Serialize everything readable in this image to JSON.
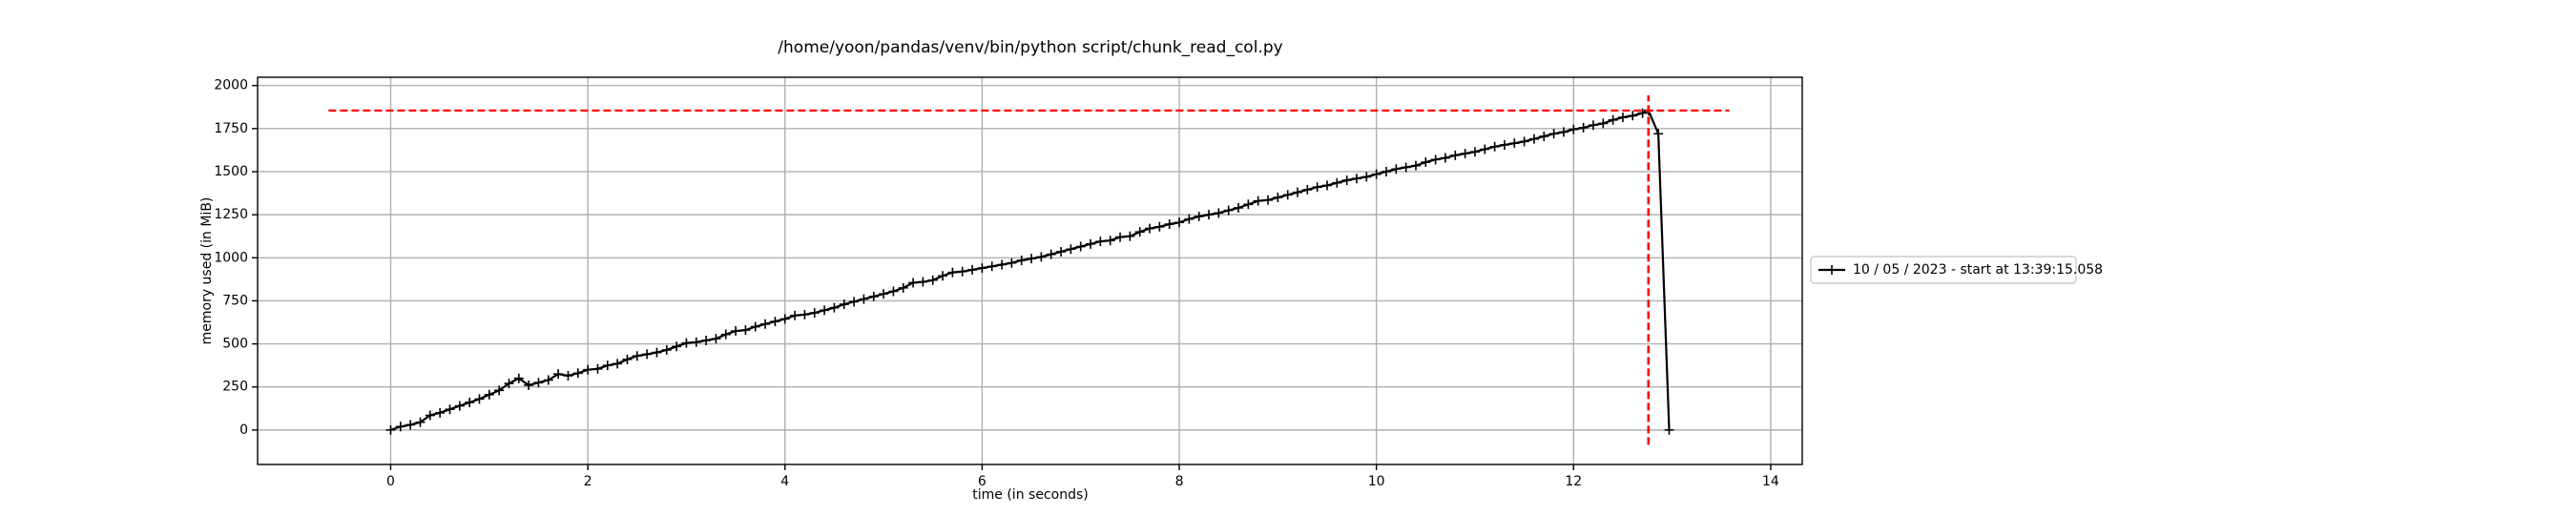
{
  "chart_data": {
    "type": "line",
    "title": "/home/yoon/pandas/venv/bin/python script/chunk_read_col.py",
    "x_label": "time (in seconds)",
    "y_label": "memory used (in MiB)",
    "x": [
      0,
      0.1,
      0.2,
      0.3,
      0.4,
      0.5,
      0.6,
      0.7,
      0.8,
      0.9,
      1.0,
      1.1,
      1.2,
      1.3,
      1.4,
      1.5,
      1.6,
      1.7,
      1.8,
      1.9,
      2.0,
      2.1,
      2.2,
      2.3,
      2.4,
      2.5,
      2.6,
      2.7,
      2.8,
      2.9,
      3.0,
      3.1,
      3.2,
      3.3,
      3.4,
      3.5,
      3.6,
      3.7,
      3.8,
      3.9,
      4.0,
      4.1,
      4.2,
      4.3,
      4.4,
      4.5,
      4.6,
      4.7,
      4.8,
      4.9,
      5.0,
      5.1,
      5.2,
      5.3,
      5.4,
      5.5,
      5.6,
      5.7,
      5.8,
      5.9,
      6.0,
      6.1,
      6.2,
      6.3,
      6.4,
      6.5,
      6.6,
      6.7,
      6.8,
      6.9,
      7.0,
      7.1,
      7.2,
      7.3,
      7.4,
      7.5,
      7.6,
      7.7,
      7.8,
      7.9,
      8.0,
      8.1,
      8.2,
      8.3,
      8.4,
      8.5,
      8.6,
      8.7,
      8.8,
      8.9,
      9.0,
      9.1,
      9.2,
      9.3,
      9.4,
      9.5,
      9.6,
      9.7,
      9.8,
      9.9,
      10.0,
      10.1,
      10.2,
      10.3,
      10.4,
      10.5,
      10.6,
      10.7,
      10.8,
      10.9,
      11.0,
      11.1,
      11.2,
      11.3,
      11.4,
      11.5,
      11.6,
      11.7,
      11.8,
      11.9,
      12.0,
      12.1,
      12.2,
      12.3,
      12.4,
      12.5,
      12.6,
      12.7,
      12.76,
      12.86,
      12.97
    ],
    "series": [
      {
        "name": "10 / 05 / 2023 - start at 13:39:15.058",
        "color": "#000000",
        "values": [
          0,
          20,
          30,
          45,
          85,
          100,
          120,
          140,
          160,
          180,
          205,
          230,
          270,
          300,
          260,
          275,
          290,
          325,
          315,
          330,
          350,
          355,
          375,
          385,
          410,
          430,
          440,
          450,
          465,
          485,
          505,
          510,
          520,
          530,
          555,
          575,
          580,
          600,
          615,
          630,
          645,
          665,
          670,
          680,
          695,
          710,
          730,
          745,
          760,
          775,
          790,
          805,
          825,
          855,
          860,
          870,
          895,
          915,
          920,
          930,
          940,
          950,
          960,
          970,
          985,
          995,
          1005,
          1020,
          1035,
          1050,
          1065,
          1080,
          1095,
          1100,
          1120,
          1125,
          1150,
          1170,
          1180,
          1195,
          1205,
          1225,
          1240,
          1250,
          1260,
          1275,
          1290,
          1310,
          1330,
          1335,
          1350,
          1365,
          1380,
          1395,
          1410,
          1420,
          1435,
          1450,
          1460,
          1470,
          1485,
          1500,
          1515,
          1525,
          1535,
          1555,
          1570,
          1580,
          1595,
          1605,
          1615,
          1630,
          1645,
          1655,
          1665,
          1675,
          1690,
          1705,
          1720,
          1730,
          1745,
          1755,
          1770,
          1780,
          1800,
          1815,
          1825,
          1840,
          1855,
          1720,
          0
        ]
      }
    ],
    "reference_lines": {
      "color": "#ff0000",
      "horizontal": {
        "y": 1855,
        "xmin": -0.63,
        "xmax": 13.58
      },
      "vertical": {
        "x": 12.76,
        "ymin": -86,
        "ymax": 1943
      }
    },
    "xlim": [
      -1.35,
      14.32
    ],
    "ylim": [
      -200,
      2048
    ],
    "xticks": [
      0,
      2,
      4,
      6,
      8,
      10,
      12,
      14
    ],
    "yticks": [
      0,
      250,
      500,
      750,
      1000,
      1250,
      1500,
      1750,
      2000
    ],
    "grid": true,
    "legend": "outside right"
  }
}
